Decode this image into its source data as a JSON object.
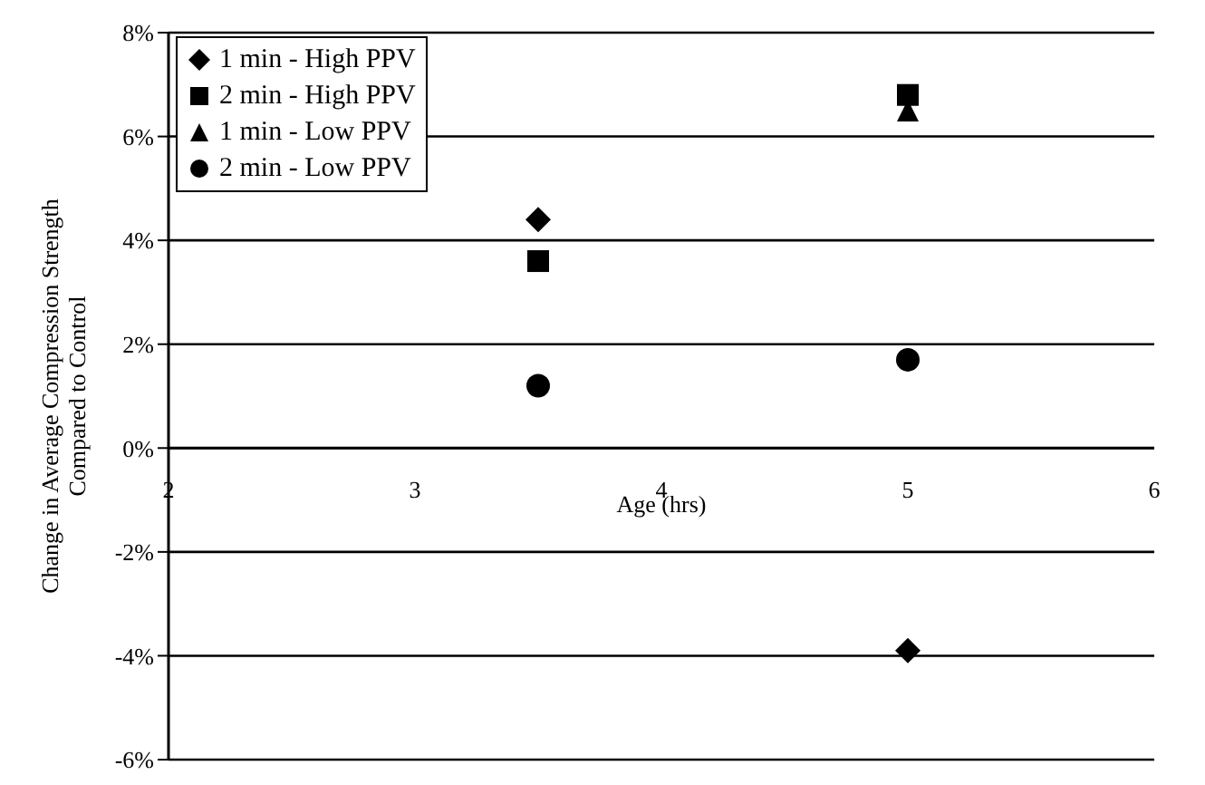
{
  "chart_data": {
    "type": "scatter",
    "xlabel": "Age (hrs)",
    "ylabel": "Change in Average Compression Strength\nCompared to Control",
    "x": [
      3.5,
      5
    ],
    "series": [
      {
        "name": "1 min - High PPV",
        "color": "#000000",
        "marker": "diamond",
        "values": [
          4.4,
          -3.9
        ]
      },
      {
        "name": "2 min - High PPV",
        "color": "#000000",
        "marker": "square",
        "values": [
          3.6,
          6.8
        ]
      },
      {
        "name": "1 min - Low PPV",
        "color": "#000000",
        "marker": "triangle",
        "values": [
          null,
          6.5
        ]
      },
      {
        "name": "2 min - Low PPV",
        "color": "#000000",
        "marker": "circle",
        "values": [
          1.2,
          1.7
        ]
      }
    ],
    "xlim": [
      2,
      6
    ],
    "xticks": [
      2,
      3,
      4,
      5,
      6
    ],
    "ylim": [
      -6,
      8
    ],
    "yticks": [
      {
        "value": -6,
        "label": "-6%"
      },
      {
        "value": -4,
        "label": "-4%"
      },
      {
        "value": -2,
        "label": "-2%"
      },
      {
        "value": 0,
        "label": "0%"
      },
      {
        "value": 2,
        "label": "2%"
      },
      {
        "value": 4,
        "label": "4%"
      },
      {
        "value": 6,
        "label": "6%"
      },
      {
        "value": 8,
        "label": "8%"
      }
    ],
    "grid": "y",
    "legend": "top left"
  }
}
